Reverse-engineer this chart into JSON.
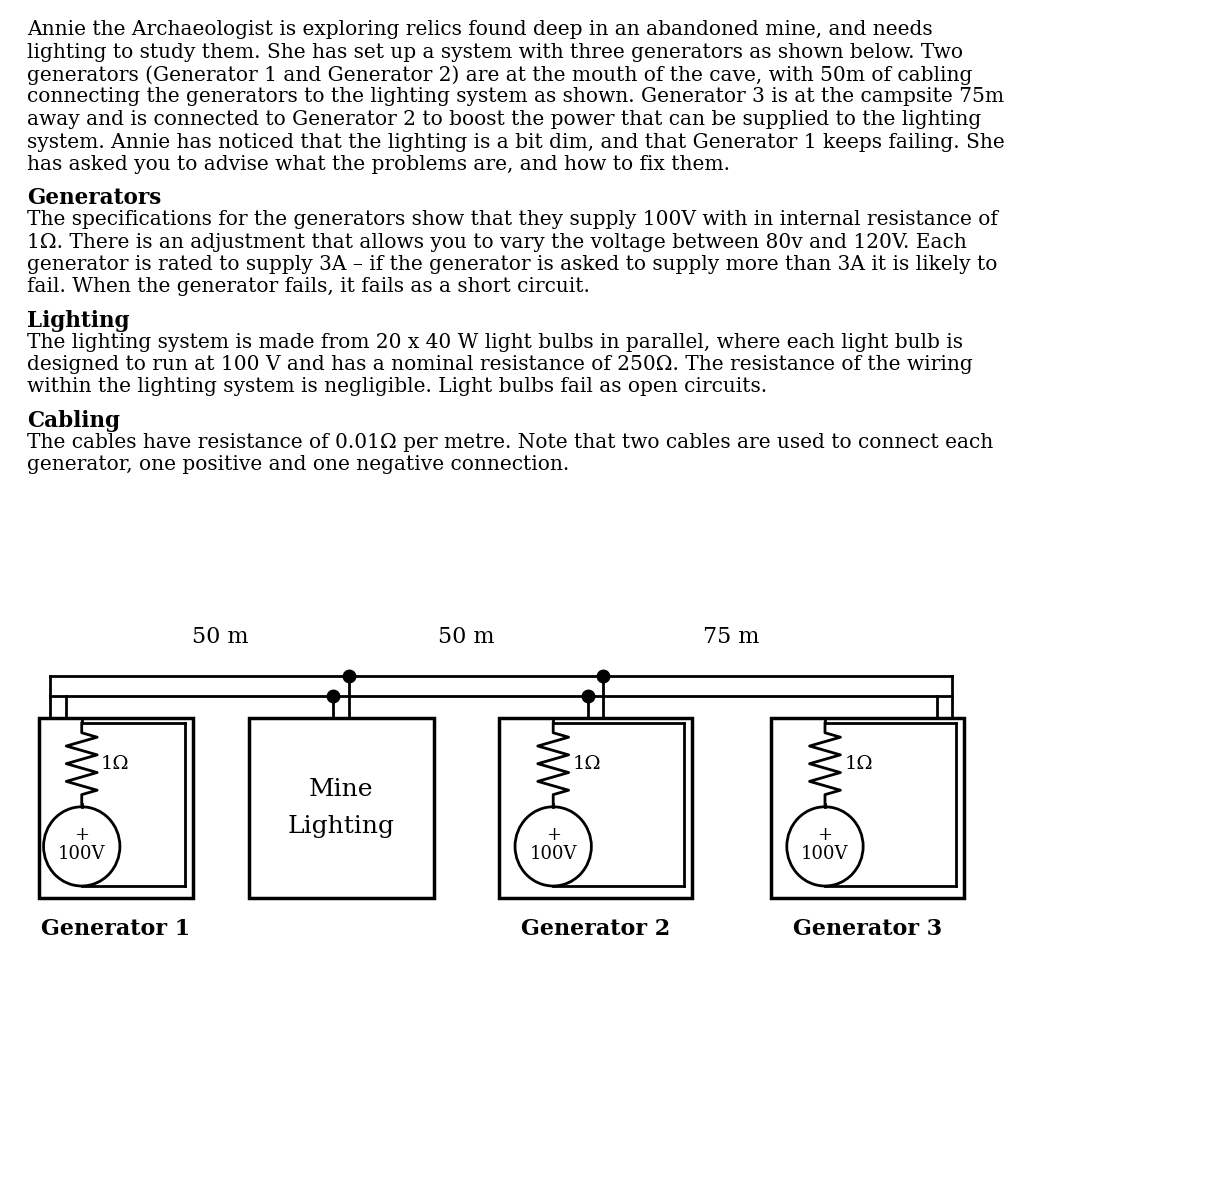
{
  "paragraph1": "Annie the Archaeologist is exploring relics found deep in an abandoned mine, and needs\nlighting to study them. She has set up a system with three generators as shown below. Two\ngenerators (Generator 1 and Generator 2) are at the mouth of the cave, with 50m of cabling\nconnecting the generators to the lighting system as shown. Generator 3 is at the campsite 75m\naway and is connected to Generator 2 to boost the power that can be supplied to the lighting\nsystem. Annie has noticed that the lighting is a bit dim, and that Generator 1 keeps failing. She\nhas asked you to advise what the problems are, and how to fix them.",
  "heading1": "Generators",
  "paragraph2": "The specifications for the generators show that they supply 100V with in internal resistance of\n1Ω. There is an adjustment that allows you to vary the voltage between 80v and 120V. Each\ngenerator is rated to supply 3A – if the generator is asked to supply more than 3A it is likely to\nfail. When the generator fails, it fails as a short circuit.",
  "heading2": "Lighting",
  "paragraph3": "The lighting system is made from 20 x 40 W light bulbs in parallel, where each light bulb is\ndesigned to run at 100 V and has a nominal resistance of 250Ω. The resistance of the wiring\nwithin the lighting system is negligible. Light bulbs fail as open circuits.",
  "heading3": "Cabling",
  "paragraph4": "The cables have resistance of 0.01Ω per metre. Note that two cables are used to connect each\ngenerator, one positive and one negative connection.",
  "cable_labels": [
    "50 m",
    "50 m",
    "75 m"
  ],
  "generator_labels": [
    "Generator 1",
    "Generator 2",
    "Generator 3"
  ],
  "mine_label_line1": "Mine",
  "mine_label_line2": "Lighting",
  "voltage_label": "100V",
  "resistance_label": "1Ω",
  "plus_label": "+",
  "bg_color": "#ffffff",
  "body_fontsize": 14.5,
  "heading_fontsize": 15.5,
  "circuit_label_fontsize": 16,
  "generator_label_fontsize": 16
}
